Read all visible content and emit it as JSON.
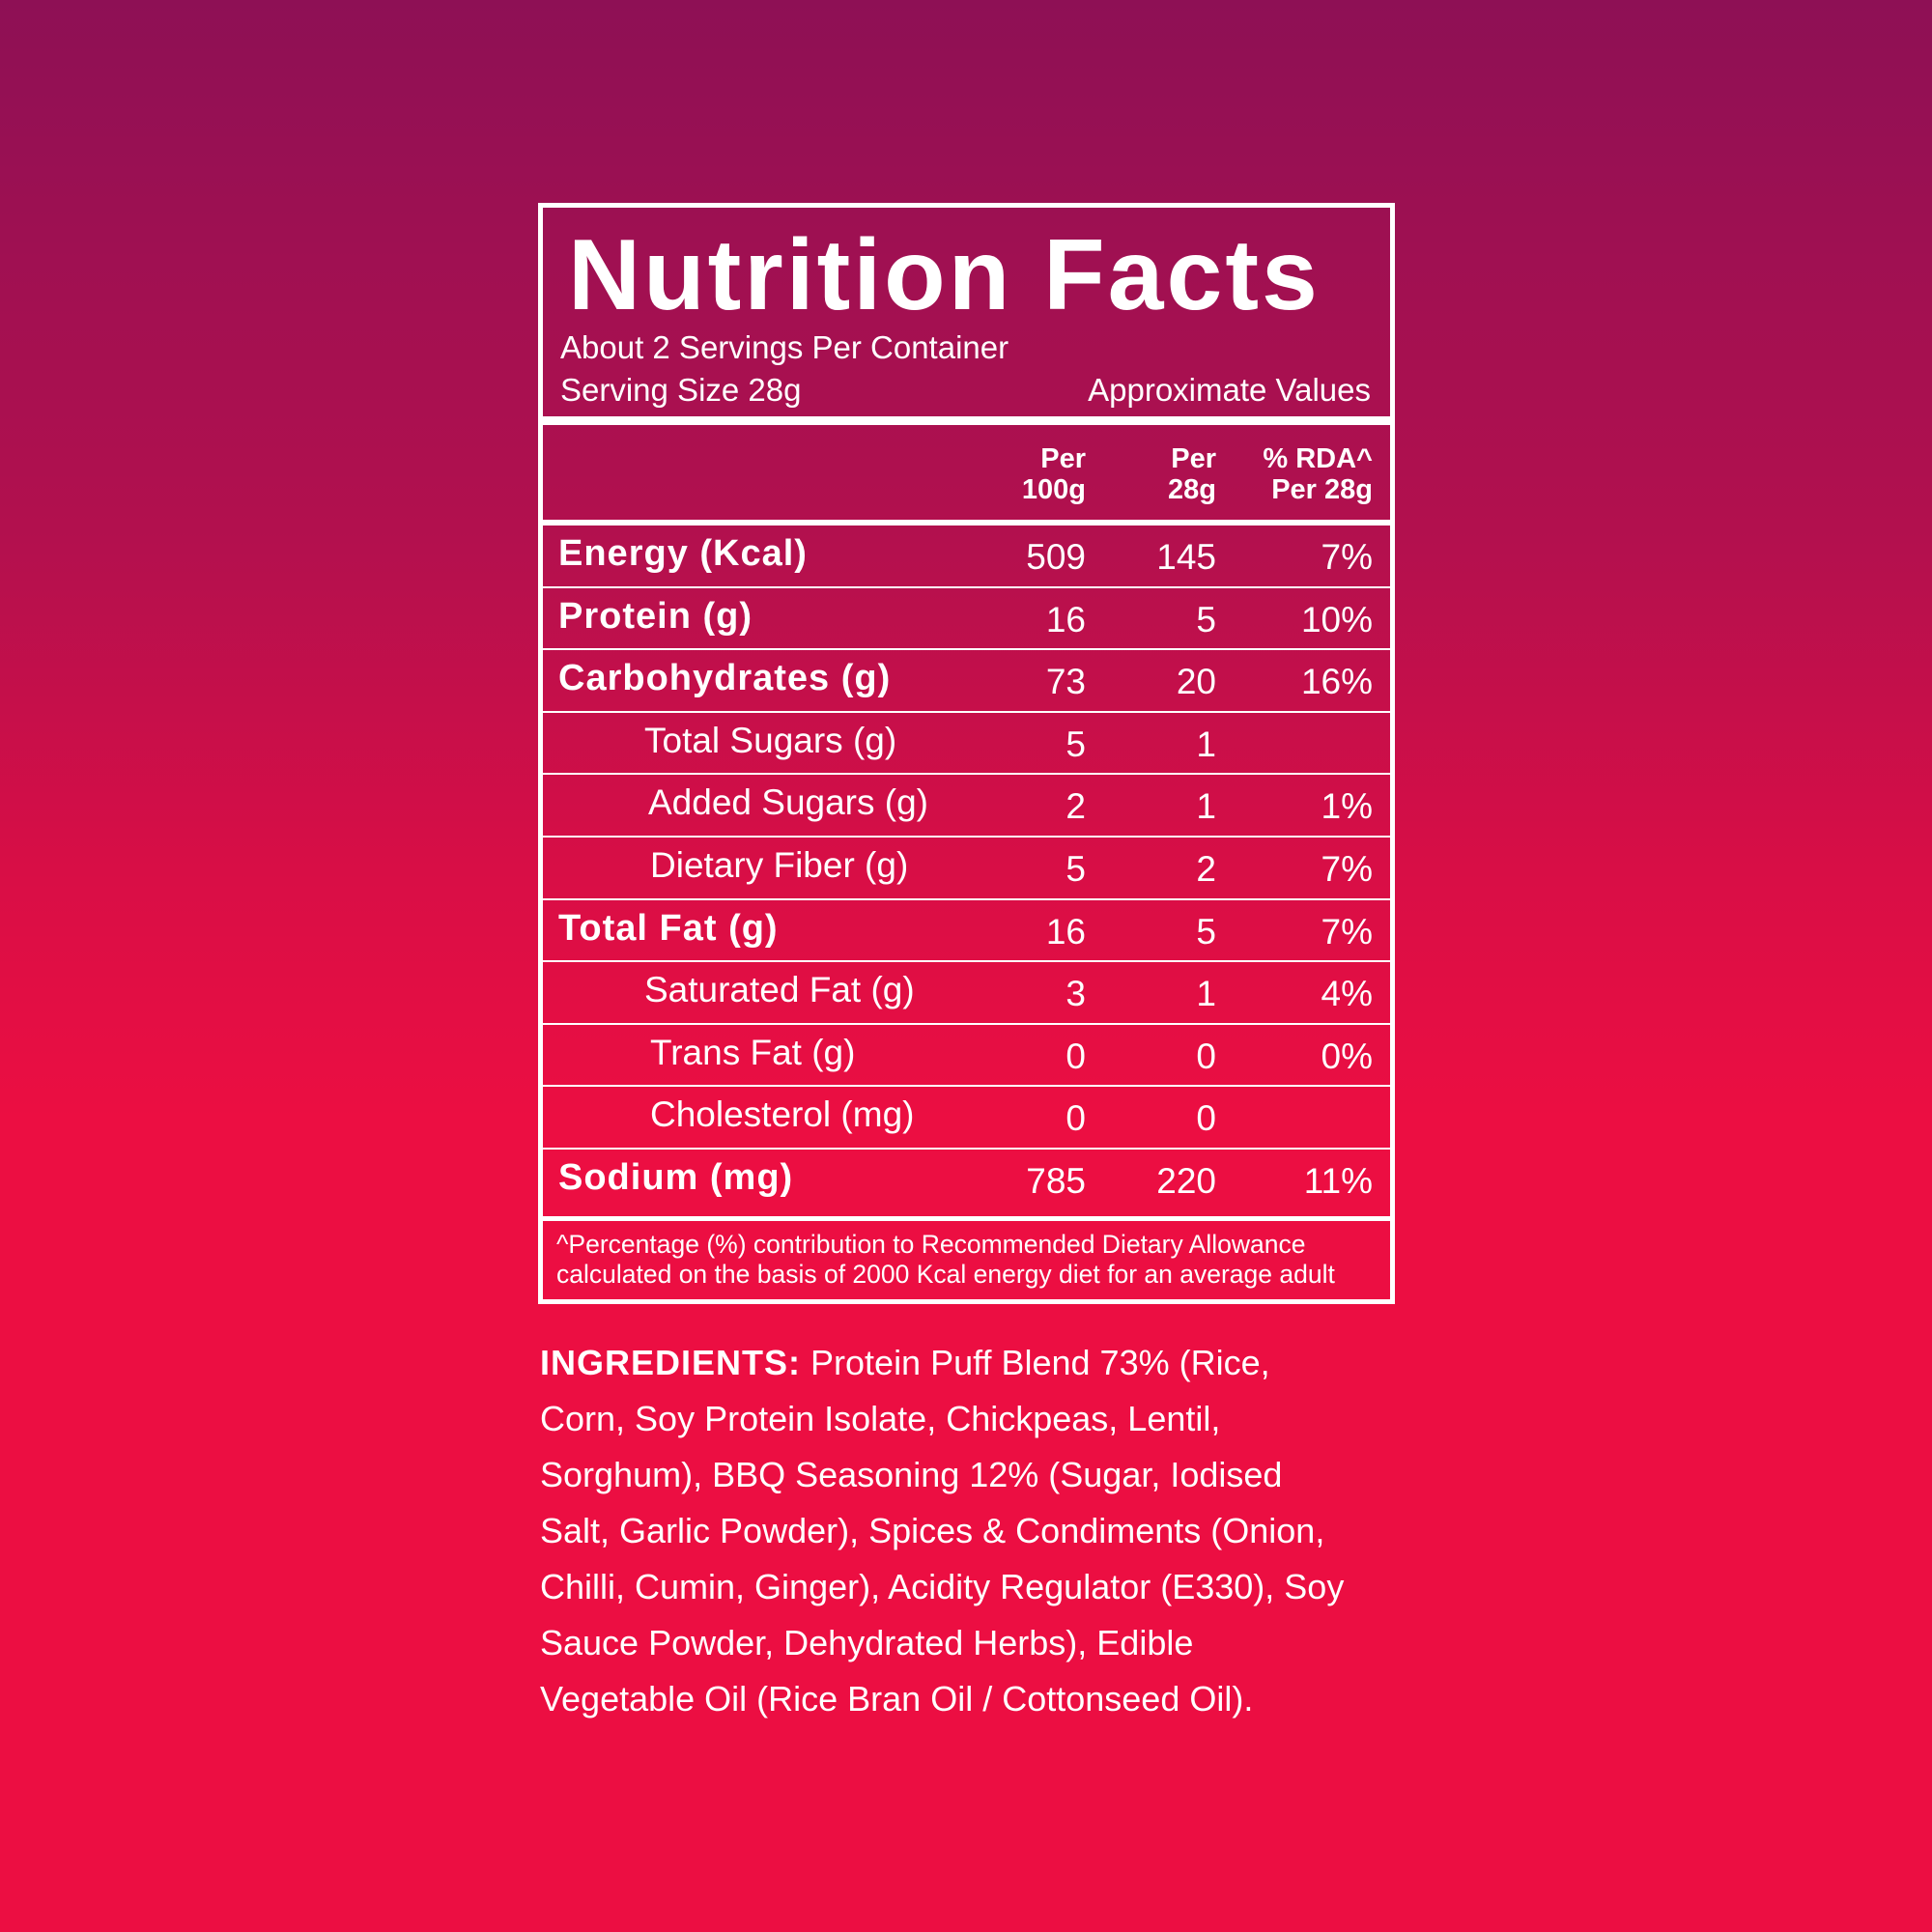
{
  "label": {
    "title": "Nutrition Facts",
    "servings": "About 2 Servings Per Container",
    "serving_size": "Serving Size 28g",
    "approx": "Approximate Values",
    "columns": {
      "per100_a": "Per",
      "per100_b": "100g",
      "per28_a": "Per",
      "per28_b": "28g",
      "rda_a": "% RDA^",
      "rda_b": "Per 28g"
    },
    "rows": [
      {
        "name": "Energy (Kcal)",
        "per100": "509",
        "per28": "145",
        "rda": "7%"
      },
      {
        "name": "Protein (g)",
        "per100": "16",
        "per28": "5",
        "rda": "10%"
      },
      {
        "name": "Carbohydrates (g)",
        "per100": "73",
        "per28": "20",
        "rda": "16%"
      },
      {
        "name": "Total Sugars (g)",
        "per100": "5",
        "per28": "1",
        "rda": ""
      },
      {
        "name": "Added Sugars (g)",
        "per100": "2",
        "per28": "1",
        "rda": "1%"
      },
      {
        "name": "Dietary Fiber (g)",
        "per100": "5",
        "per28": "2",
        "rda": "7%"
      },
      {
        "name": "Total Fat (g)",
        "per100": "16",
        "per28": "5",
        "rda": "7%"
      },
      {
        "name": "Saturated Fat (g)",
        "per100": "3",
        "per28": "1",
        "rda": "4%"
      },
      {
        "name": "Trans Fat (g)",
        "per100": "0",
        "per28": "0",
        "rda": "0%"
      },
      {
        "name": "Cholesterol (mg)",
        "per100": "0",
        "per28": "0",
        "rda": ""
      },
      {
        "name": "Sodium (mg)",
        "per100": "785",
        "per28": "220",
        "rda": "11%"
      }
    ],
    "footnote_1": "^Percentage (%) contribution to Recommended Dietary Allowance",
    "footnote_2": "calculated on the basis of 2000 Kcal energy diet for an average adult"
  },
  "ingredients": {
    "heading": "INGREDIENTS:",
    "lines": [
      " Protein Puff Blend 73% (Rice,",
      "Corn, Soy Protein Isolate, Chickpeas, Lentil,",
      "Sorghum), BBQ Seasoning 12% (Sugar, Iodised",
      "Salt, Garlic Powder), Spices & Condiments (Onion,",
      "Chilli, Cumin, Ginger), Acidity Regulator (E330), Soy",
      "Sauce Powder, Dehydrated Herbs), Edible",
      "Vegetable Oil (Rice Bran Oil / Cottonseed Oil)."
    ]
  },
  "colors": {
    "background_top": "#8e1055",
    "background_bottom": "#ec0e42",
    "text": "#ffffff"
  }
}
